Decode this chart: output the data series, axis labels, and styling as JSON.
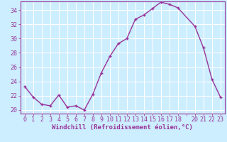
{
  "hours": [
    0,
    1,
    2,
    3,
    4,
    5,
    6,
    7,
    8,
    9,
    10,
    11,
    12,
    13,
    14,
    15,
    16,
    17,
    18,
    20,
    21,
    22,
    23
  ],
  "values": [
    23.3,
    21.8,
    20.8,
    20.6,
    22.1,
    20.4,
    20.6,
    20.0,
    22.2,
    25.2,
    27.5,
    29.3,
    30.0,
    32.7,
    33.3,
    34.2,
    35.1,
    34.8,
    34.3,
    31.7,
    28.7,
    24.3,
    21.8
  ],
  "line_color": "#993399",
  "marker": "+",
  "bg_color": "#cceeff",
  "grid_color": "#ffffff",
  "xlabel": "Windchill (Refroidissement éolien,°C)",
  "xlim": [
    -0.5,
    23.5
  ],
  "ylim": [
    19.5,
    35.2
  ],
  "yticks": [
    20,
    22,
    24,
    26,
    28,
    30,
    32,
    34
  ],
  "xtick_labels": [
    "0",
    "1",
    "2",
    "3",
    "4",
    "5",
    "6",
    "7",
    "8",
    "9",
    "10",
    "11",
    "12",
    "13",
    "14",
    "15",
    "16",
    "17",
    "18",
    "",
    "20",
    "21",
    "22",
    "23"
  ],
  "xlabel_fontsize": 6.5,
  "tick_fontsize": 6,
  "line_width": 1.0,
  "marker_size": 3.5,
  "marker_edge_width": 1.0
}
